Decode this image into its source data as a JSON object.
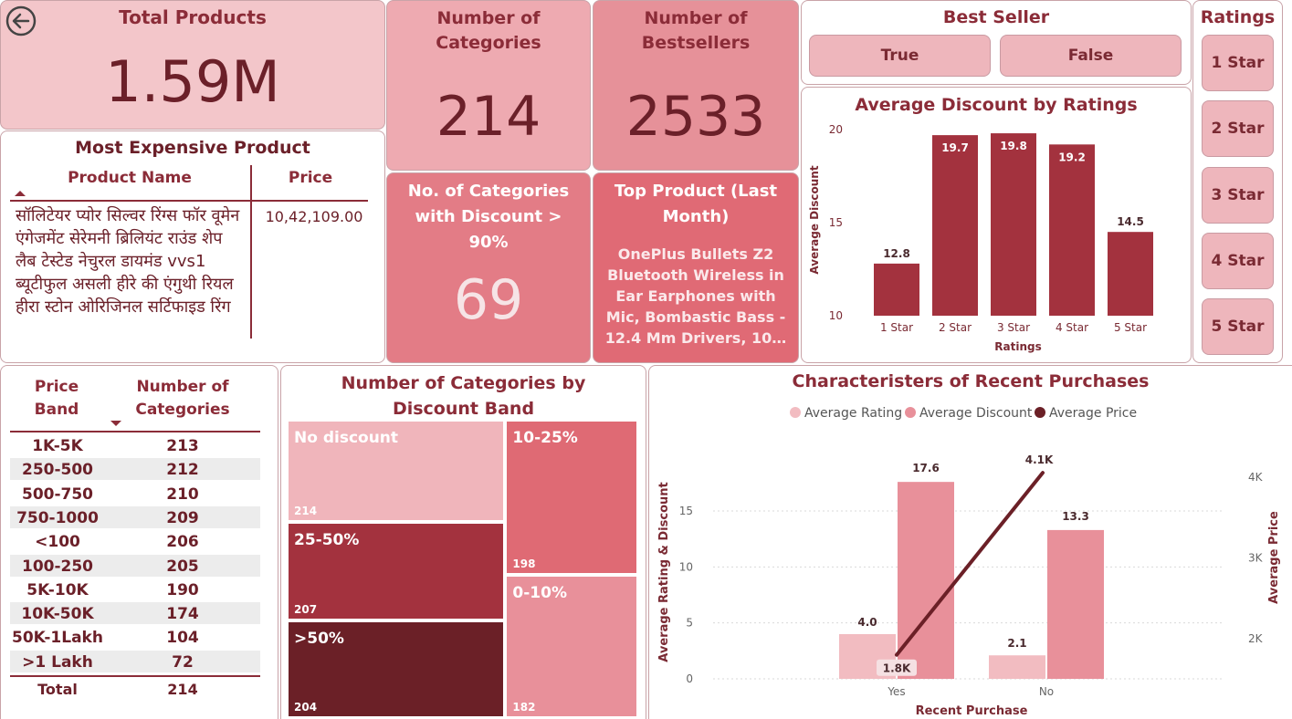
{
  "back_icon": "back-arrow-icon",
  "kpis": {
    "total_products": {
      "label": "Total Products",
      "value": "1.59M"
    },
    "num_categories": {
      "label": "Number of Categories",
      "value": "214"
    },
    "num_bestsellers": {
      "label": "Number of Bestsellers",
      "value": "2533"
    },
    "cat_discount_90": {
      "label": "No. of Categories with Discount > 90%",
      "value": "69"
    },
    "top_product": {
      "label": "Top Product (Last Month)",
      "value": "OnePlus Bullets Z2 Bluetooth Wireless in Ear Earphones with Mic, Bombastic Bass - 12.4 Mm Drivers, 10…"
    }
  },
  "best_seller": {
    "title": "Best Seller",
    "options": [
      "True",
      "False"
    ]
  },
  "ratings_slicer": {
    "title": "Ratings",
    "options": [
      "1 Star",
      "2 Star",
      "3 Star",
      "4 Star",
      "5 Star"
    ]
  },
  "most_expensive": {
    "title": "Most Expensive Product",
    "col_name": "Product Name",
    "col_price": "Price",
    "product": "सॉलिटेयर प्योर सिल्वर रिंग्स फॉर वूमेन एंगेजमेंट सेरेमनी ब्रिलियंट राउंड शेप लैब टेस्टेड नेचुरल डायमंड vvs1 ब्यूटीफुल असली हीरे की एंगुथी रियल हीरा स्टोन ओरिजिनल सर्टिफाइड रिंग",
    "price": "10,42,109.00"
  },
  "price_band_table": {
    "col1": "Price Band",
    "col2": "Number of Categories",
    "rows": [
      {
        "band": "1K-5K",
        "count": "213"
      },
      {
        "band": "250-500",
        "count": "212"
      },
      {
        "band": "500-750",
        "count": "210"
      },
      {
        "band": "750-1000",
        "count": "209"
      },
      {
        "band": "<100",
        "count": "206"
      },
      {
        "band": "100-250",
        "count": "205"
      },
      {
        "band": "5K-10K",
        "count": "190"
      },
      {
        "band": "10K-50K",
        "count": "174"
      },
      {
        "band": "50K-1Lakh",
        "count": "104"
      },
      {
        "band": ">1 Lakh",
        "count": "72"
      }
    ],
    "total_label": "Total",
    "total_value": "214"
  },
  "chart_data": [
    {
      "type": "bar",
      "title": "Average Discount by Ratings",
      "categories": [
        "1 Star",
        "2 Star",
        "3 Star",
        "4 Star",
        "5 Star"
      ],
      "values": [
        12.8,
        19.7,
        19.8,
        19.2,
        14.5
      ],
      "data_labels": [
        "12.8",
        "19.7",
        "19.8",
        "19.2",
        "14.5"
      ],
      "xlabel": "Ratings",
      "ylabel": "Average Discount",
      "ylim": [
        10,
        20
      ],
      "yticks": [
        "10",
        "15",
        "20"
      ],
      "color": "#a3323e"
    },
    {
      "type": "treemap",
      "title": "Number of Categories by Discount Band",
      "items": [
        {
          "label": "No discount",
          "value": 214,
          "value_label": "214",
          "color": "#f0b5bb"
        },
        {
          "label": "25-50%",
          "value": 207,
          "value_label": "207",
          "color": "#a3323e"
        },
        {
          "label": ">50%",
          "value": 204,
          "value_label": "204",
          "color": "#6b2027"
        },
        {
          "label": "10-25%",
          "value": 198,
          "value_label": "198",
          "color": "#df6a74"
        },
        {
          "label": "0-10%",
          "value": 182,
          "value_label": "182",
          "color": "#e8909a"
        }
      ]
    },
    {
      "type": "bar",
      "title": "Characteristers of Recent Purchases",
      "categories": [
        "Yes",
        "No"
      ],
      "xlabel": "Recent Purchase",
      "ylabel": "Average Rating & Discount",
      "y2label": "Average Price",
      "ylim": [
        0,
        19
      ],
      "yticks": [
        "0",
        "5",
        "10",
        "15"
      ],
      "y2ticks": [
        "2K",
        "3K",
        "4K"
      ],
      "series": [
        {
          "name": "Average Rating",
          "values": [
            4.0,
            2.1
          ],
          "labels": [
            "4.0",
            "2.1"
          ],
          "color": "#f2bcc1"
        },
        {
          "name": "Average Discount",
          "values": [
            17.6,
            13.3
          ],
          "labels": [
            "17.6",
            "13.3"
          ],
          "color": "#e8909a"
        },
        {
          "name": "Average Price",
          "type": "line",
          "values": [
            1800,
            4100
          ],
          "labels": [
            "1.8K",
            "4.1K"
          ],
          "color": "#6b2027"
        }
      ]
    }
  ]
}
